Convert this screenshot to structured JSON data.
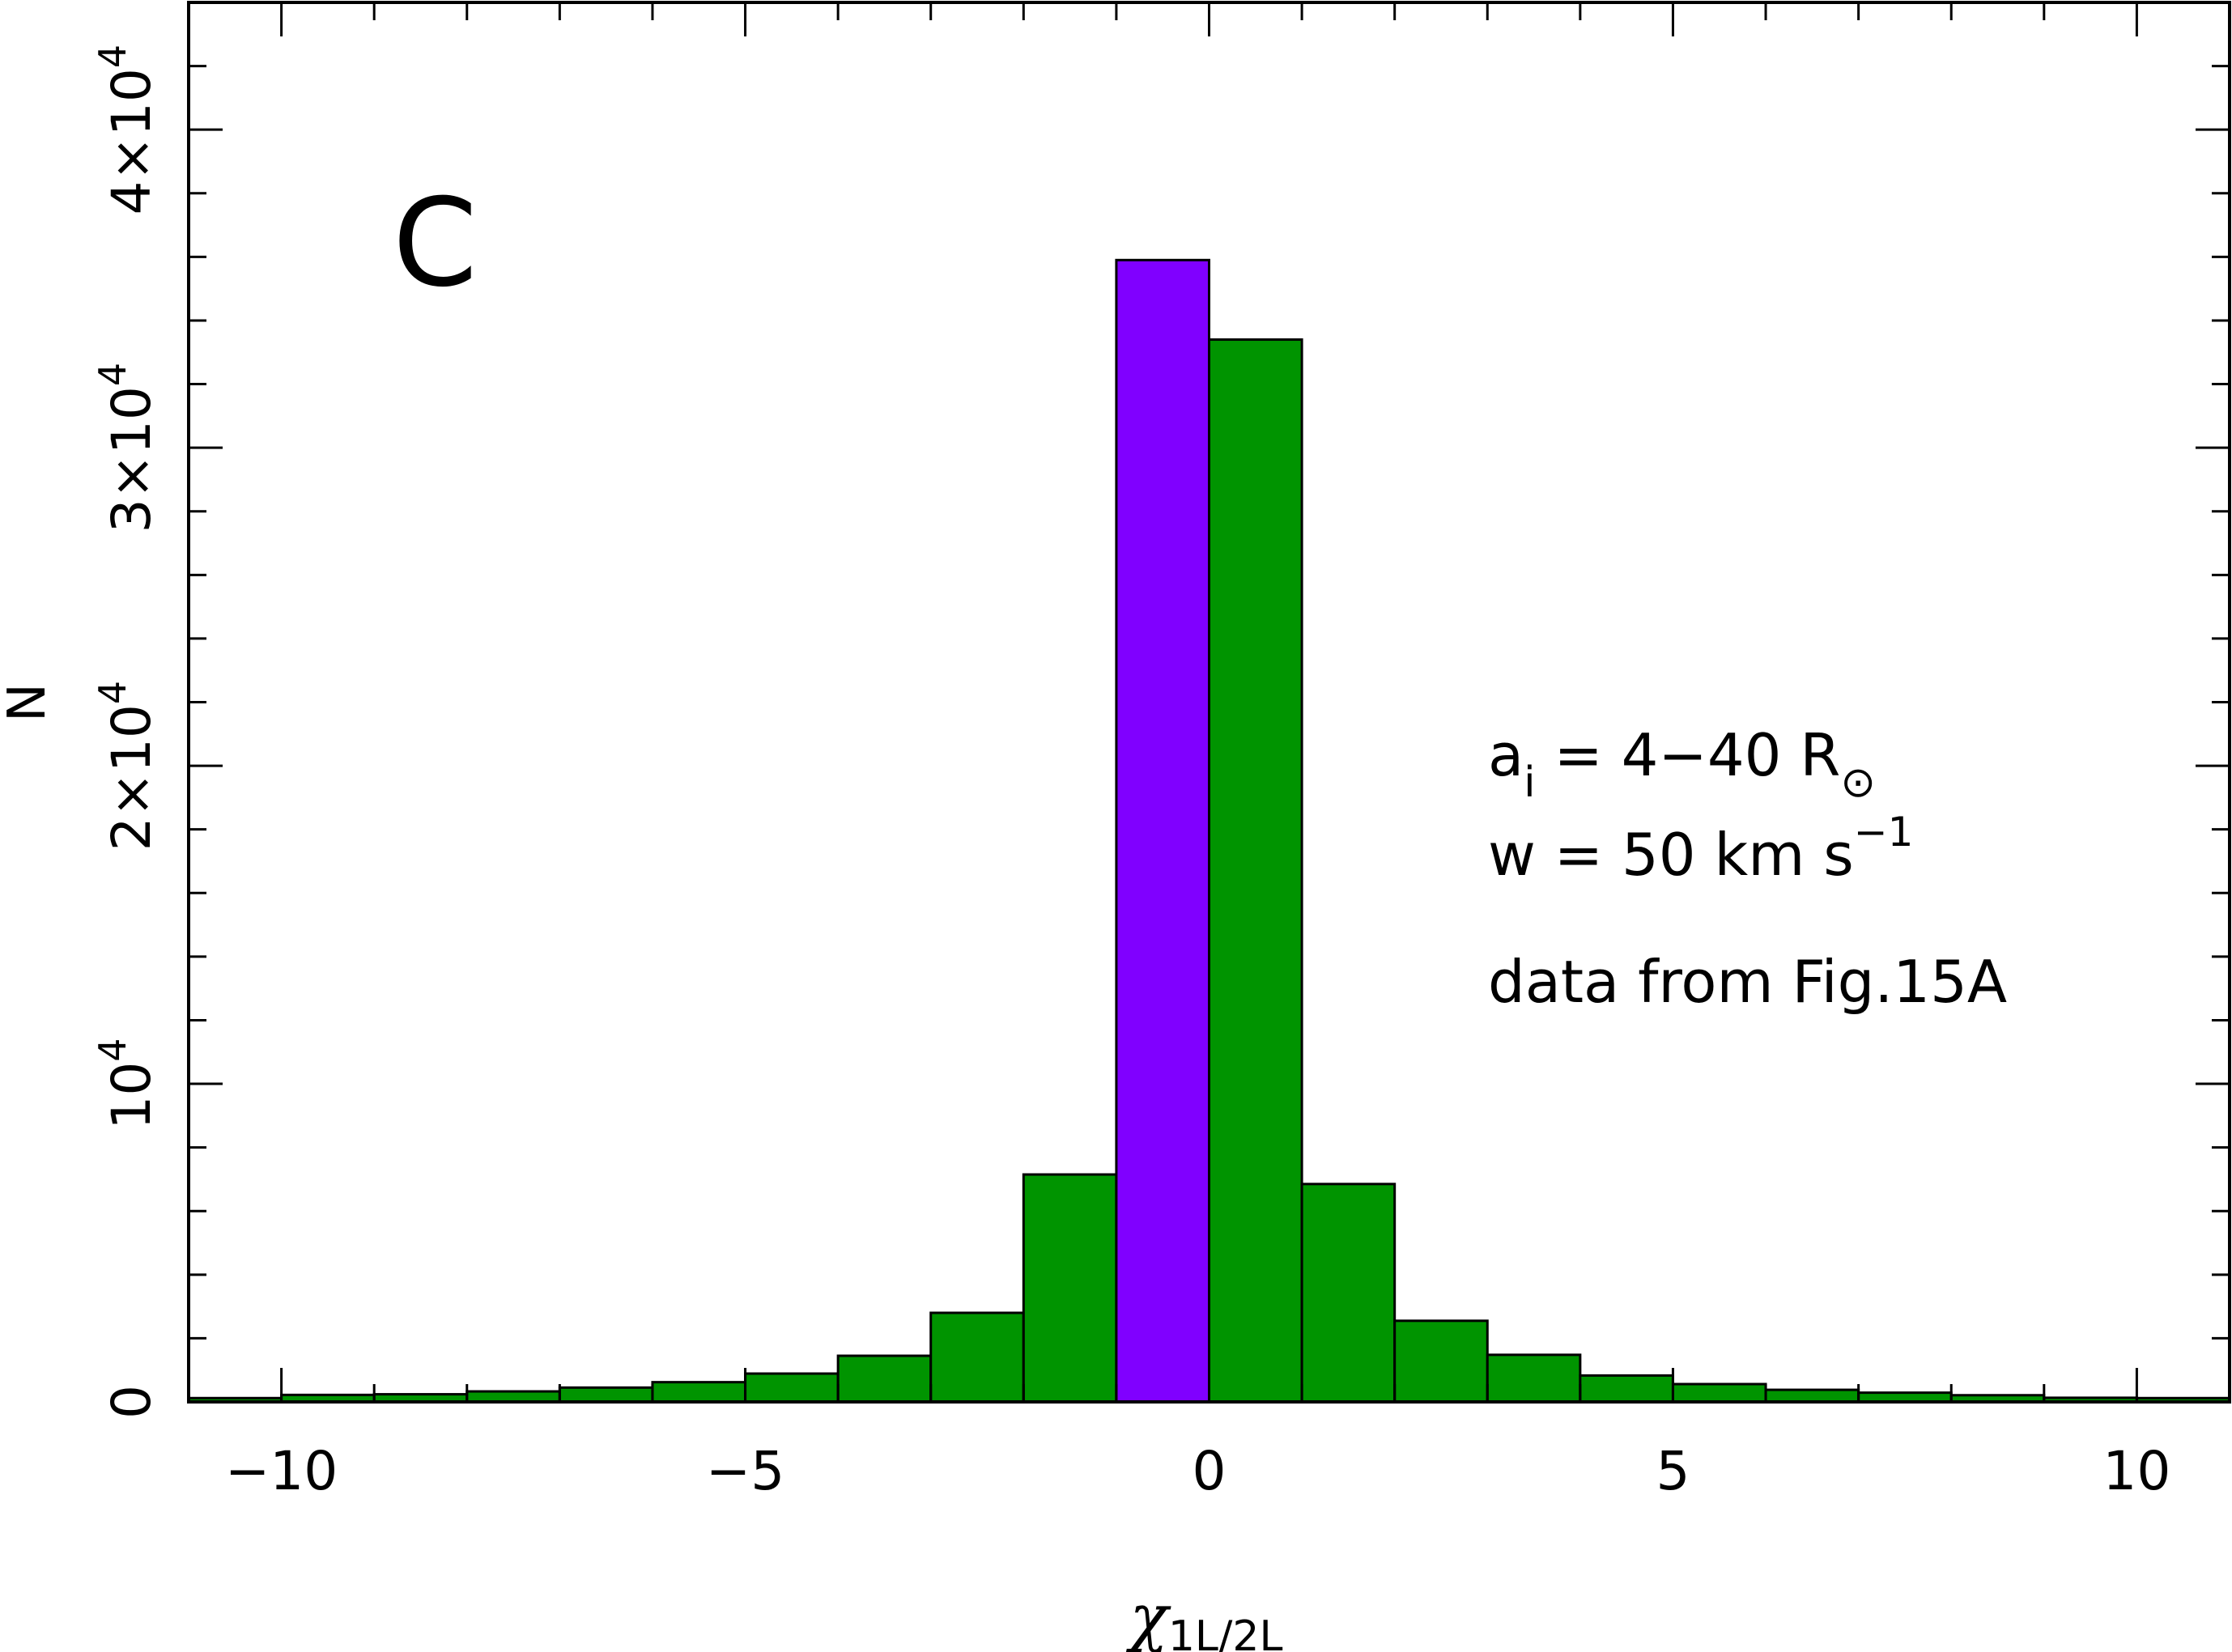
{
  "chart_data": {
    "type": "bar",
    "panel_label": "C",
    "xlabel": {
      "main": "χ",
      "sub": "1L/2L"
    },
    "ylabel": "N",
    "xlim": [
      -11,
      11
    ],
    "ylim": [
      0,
      44000
    ],
    "grid": false,
    "legend": "none",
    "x_ticks": [
      {
        "value": -10,
        "label": "−10"
      },
      {
        "value": -5,
        "label": "−5"
      },
      {
        "value": 0,
        "label": "0"
      },
      {
        "value": 5,
        "label": "5"
      },
      {
        "value": 10,
        "label": "10"
      }
    ],
    "y_ticks": [
      {
        "value": 0,
        "base": "0",
        "exp": ""
      },
      {
        "value": 10000,
        "base": "10",
        "exp": "4"
      },
      {
        "value": 20000,
        "base": "2×10",
        "exp": "4"
      },
      {
        "value": 30000,
        "base": "3×10",
        "exp": "4"
      },
      {
        "value": 40000,
        "base": "4×10",
        "exp": "4"
      }
    ],
    "bin_edges": [
      -11,
      -10,
      -9,
      -8,
      -7,
      -6,
      -5,
      -4,
      -3,
      -2,
      -1,
      0,
      1,
      2,
      3,
      4,
      5,
      6,
      7,
      8,
      9,
      10,
      11
    ],
    "values": [
      120,
      220,
      240,
      330,
      450,
      620,
      890,
      1450,
      2800,
      7150,
      35900,
      33400,
      6850,
      2550,
      1480,
      830,
      560,
      380,
      290,
      210,
      130,
      120
    ],
    "highlight_bin": 10,
    "colors": {
      "bar": "#009400",
      "highlight": "#8000ff",
      "edge": "#000000"
    },
    "annotations": [
      {
        "segments": [
          {
            "t": "a"
          },
          {
            "t": "i",
            "style": "sub"
          },
          {
            "t": " = 4−40 R"
          },
          {
            "t": "⊙",
            "style": "sub"
          }
        ]
      },
      {
        "segments": [
          {
            "t": "w = 50 km s"
          },
          {
            "t": "−1",
            "style": "sup"
          }
        ]
      },
      {
        "segments": [
          {
            "t": "data from Fig.15A"
          }
        ]
      }
    ]
  }
}
